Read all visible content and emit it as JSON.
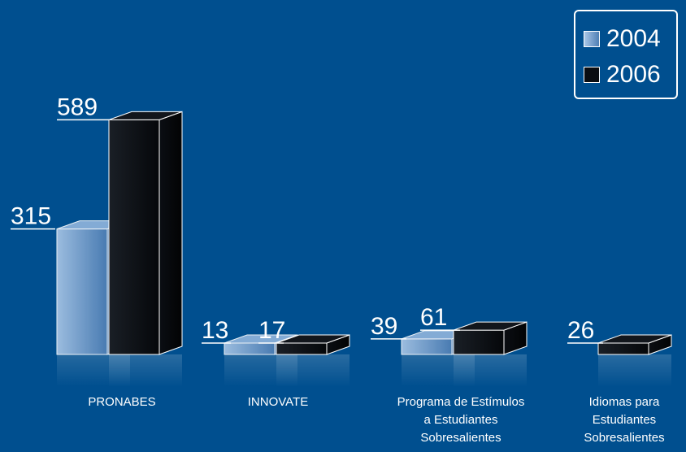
{
  "chart_data": {
    "type": "bar",
    "categories": [
      "PRONABES",
      "INNOVATE",
      "Programa de Estímulos\na Estudiantes\nSobresalientes",
      "Idiomas para\nEstudiantes\nSobresalientes"
    ],
    "series": [
      {
        "name": "2004",
        "values": [
          315,
          13,
          39,
          null
        ],
        "color": "#7fa8d4"
      },
      {
        "name": "2006",
        "values": [
          589,
          17,
          61,
          26
        ],
        "color": "#0a0d12"
      }
    ],
    "title": "",
    "xlabel": "",
    "ylabel": "",
    "ylim": [
      0,
      600
    ],
    "grid": false,
    "legend_position": "top-right",
    "style": "3d-box"
  },
  "colors": {
    "background": "#004f8f",
    "edge": "#ffffff"
  }
}
